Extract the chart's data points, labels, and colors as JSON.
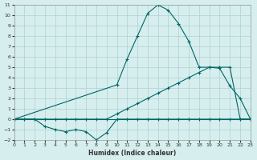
{
  "xlabel": "Humidex (Indice chaleur)",
  "background_color": "#d6eeee",
  "grid_color": "#b0d0d0",
  "line_color": "#006666",
  "xlim": [
    0,
    23
  ],
  "ylim": [
    -2,
    11
  ],
  "xticks": [
    0,
    1,
    2,
    3,
    4,
    5,
    6,
    7,
    8,
    9,
    10,
    11,
    12,
    13,
    14,
    15,
    16,
    17,
    18,
    19,
    20,
    21,
    22,
    23
  ],
  "yticks": [
    -2,
    -1,
    0,
    1,
    2,
    3,
    4,
    5,
    6,
    7,
    8,
    9,
    10,
    11
  ],
  "series1_x": [
    0,
    1,
    2,
    3,
    4,
    5,
    6,
    7,
    8,
    9,
    10,
    11,
    12,
    13,
    14,
    15,
    16,
    17,
    18,
    19,
    20,
    21,
    22,
    23
  ],
  "series1_y": [
    0,
    0,
    0,
    -0.7,
    -1,
    -1.2,
    -1,
    -1.2,
    -2,
    -1.3,
    0,
    0,
    0,
    0,
    0,
    0,
    0,
    0,
    0,
    0,
    0,
    0,
    0,
    0
  ],
  "series2_x": [
    0,
    1,
    2,
    3,
    4,
    5,
    6,
    7,
    8,
    9,
    10,
    11,
    12,
    13,
    14,
    15,
    16,
    17,
    18,
    19,
    20,
    21,
    22,
    23
  ],
  "series2_y": [
    0,
    0,
    0,
    0,
    0,
    0,
    0,
    0,
    0,
    0,
    0.5,
    1.0,
    1.5,
    2.0,
    2.5,
    3.0,
    3.5,
    4.0,
    4.5,
    5.0,
    5.0,
    5.0,
    0,
    0
  ],
  "series3_x": [
    0,
    10,
    11,
    12,
    13,
    14,
    15,
    16,
    17,
    18,
    19,
    20,
    21,
    22,
    23
  ],
  "series3_y": [
    0,
    3.3,
    5.8,
    8.0,
    10.2,
    11.0,
    10.5,
    9.2,
    7.5,
    5.0,
    5.0,
    4.9,
    3.2,
    2.0,
    0
  ],
  "series4_x": [
    0,
    1,
    2,
    3,
    4,
    5,
    6,
    7,
    8,
    9,
    10,
    11,
    12,
    13,
    14,
    15,
    16,
    17,
    18,
    19,
    20,
    21,
    22,
    23
  ],
  "series4_y": [
    0,
    0,
    0,
    0,
    0,
    0,
    0,
    0,
    0,
    0,
    0,
    0,
    0,
    0,
    0,
    0,
    0,
    0,
    0,
    0,
    0,
    0,
    0,
    0
  ]
}
